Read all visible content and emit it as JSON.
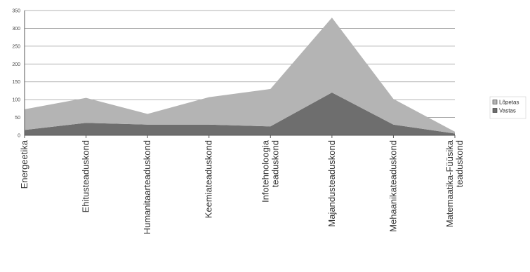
{
  "chart_data": {
    "type": "area",
    "stacked": true,
    "categories": [
      [
        "Energeetika"
      ],
      [
        "Ehitusteaduskond"
      ],
      [
        "Humanitaarteaduskond"
      ],
      [
        "Keemiateaduskond"
      ],
      [
        "Infotehnoloogia",
        "teaduskond"
      ],
      [
        "Majandusteaduskond"
      ],
      [
        "Mehaanikateaduskond"
      ],
      [
        "Matemaatika-Füüsika",
        "teaduskond"
      ]
    ],
    "series": [
      {
        "name": "Vastas",
        "color": "#6e6e6e",
        "values": [
          15,
          35,
          30,
          30,
          25,
          120,
          30,
          5
        ]
      },
      {
        "name": "Lõpetas",
        "color": "#b4b4b4",
        "values": [
          58,
          70,
          30,
          77,
          105,
          210,
          72,
          5
        ]
      }
    ],
    "ylim": [
      0,
      350
    ],
    "yticks": [
      "0",
      "50",
      "100",
      "150",
      "200",
      "250",
      "300",
      "350"
    ],
    "grid": true,
    "legend": "right",
    "legend_entries": [
      "Lõpetas",
      "Vastas"
    ]
  }
}
